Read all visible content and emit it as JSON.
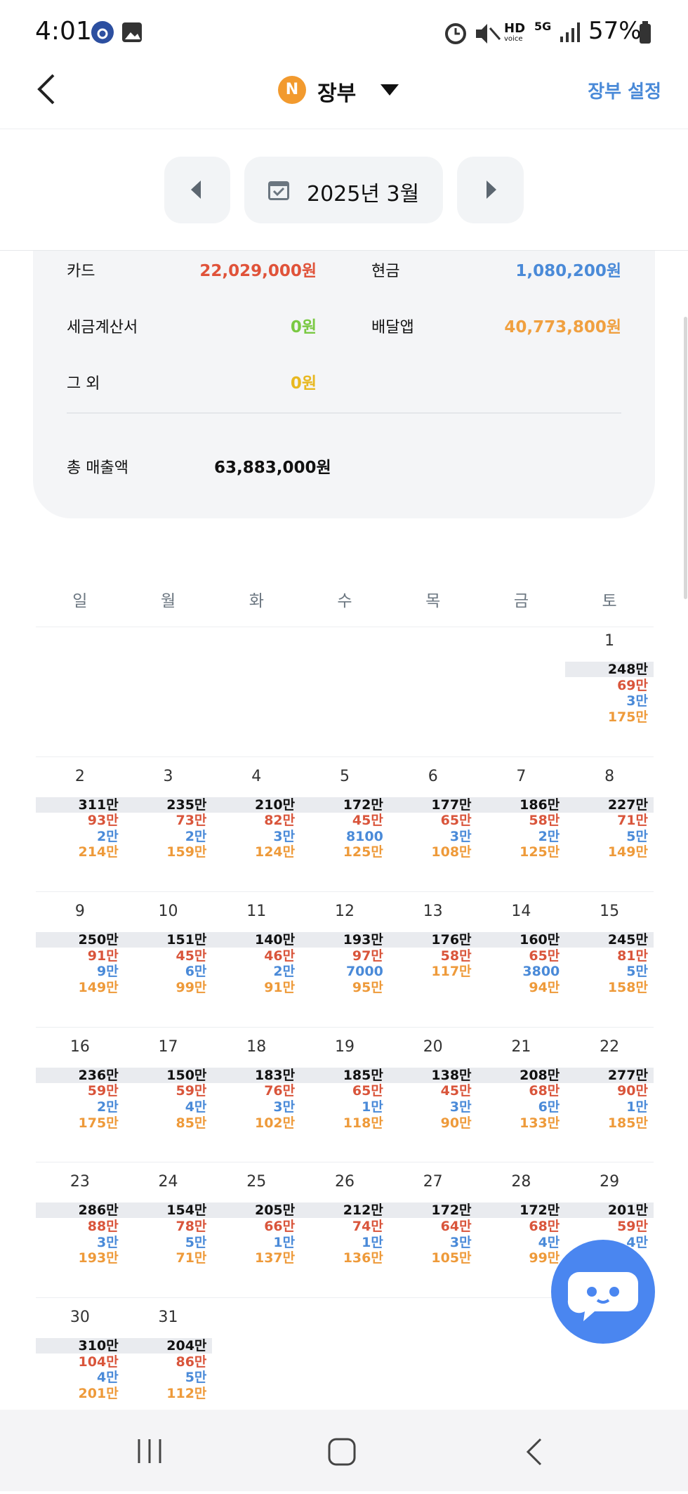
{
  "status_bar": {
    "time": "4:01",
    "voice": "HD",
    "voice_sub": "voice",
    "network": "5G",
    "battery": "57%"
  },
  "header": {
    "badge": "N",
    "title": "장부",
    "settings": "장부 설정"
  },
  "month_nav": {
    "label": "2025년 3월"
  },
  "summary": {
    "items": [
      {
        "label": "카드",
        "value": "22,029,000원"
      },
      {
        "label": "현금",
        "value": "1,080,200원"
      },
      {
        "label": "세금계산서",
        "value": "0원"
      },
      {
        "label": "배달앱",
        "value": "40,773,800원"
      },
      {
        "label": "그 외",
        "value": "0원"
      }
    ],
    "total": {
      "label": "총 매출액",
      "value": "63,883,000원"
    }
  },
  "calendar": {
    "weekdays": [
      "일",
      "월",
      "화",
      "수",
      "목",
      "금",
      "토"
    ],
    "weeks": [
      [
        null,
        null,
        null,
        null,
        null,
        null,
        {
          "day": 1,
          "total": "248만",
          "card": "69만",
          "cash": "3만",
          "delivery": "175만"
        }
      ],
      [
        {
          "day": 2,
          "total": "311만",
          "card": "93만",
          "cash": "2만",
          "delivery": "214만"
        },
        {
          "day": 3,
          "total": "235만",
          "card": "73만",
          "cash": "2만",
          "delivery": "159만"
        },
        {
          "day": 4,
          "total": "210만",
          "card": "82만",
          "cash": "3만",
          "delivery": "124만"
        },
        {
          "day": 5,
          "total": "172만",
          "card": "45만",
          "cash": "8100",
          "delivery": "125만"
        },
        {
          "day": 6,
          "total": "177만",
          "card": "65만",
          "cash": "3만",
          "delivery": "108만"
        },
        {
          "day": 7,
          "total": "186만",
          "card": "58만",
          "cash": "2만",
          "delivery": "125만"
        },
        {
          "day": 8,
          "total": "227만",
          "card": "71만",
          "cash": "5만",
          "delivery": "149만"
        }
      ],
      [
        {
          "day": 9,
          "total": "250만",
          "card": "91만",
          "cash": "9만",
          "delivery": "149만"
        },
        {
          "day": 10,
          "total": "151만",
          "card": "45만",
          "cash": "6만",
          "delivery": "99만"
        },
        {
          "day": 11,
          "total": "140만",
          "card": "46만",
          "cash": "2만",
          "delivery": "91만"
        },
        {
          "day": 12,
          "total": "193만",
          "card": "97만",
          "cash": "7000",
          "delivery": "95만"
        },
        {
          "day": 13,
          "total": "176만",
          "card": "58만",
          "delivery": "117만"
        },
        {
          "day": 14,
          "total": "160만",
          "card": "65만",
          "cash": "3800",
          "delivery": "94만"
        },
        {
          "day": 15,
          "total": "245만",
          "card": "81만",
          "cash": "5만",
          "delivery": "158만"
        }
      ],
      [
        {
          "day": 16,
          "total": "236만",
          "card": "59만",
          "cash": "2만",
          "delivery": "175만"
        },
        {
          "day": 17,
          "total": "150만",
          "card": "59만",
          "cash": "4만",
          "delivery": "85만"
        },
        {
          "day": 18,
          "total": "183만",
          "card": "76만",
          "cash": "3만",
          "delivery": "102만"
        },
        {
          "day": 19,
          "total": "185만",
          "card": "65만",
          "cash": "1만",
          "delivery": "118만"
        },
        {
          "day": 20,
          "total": "138만",
          "card": "45만",
          "cash": "3만",
          "delivery": "90만"
        },
        {
          "day": 21,
          "total": "208만",
          "card": "68만",
          "cash": "6만",
          "delivery": "133만"
        },
        {
          "day": 22,
          "total": "277만",
          "card": "90만",
          "cash": "1만",
          "delivery": "185만"
        }
      ],
      [
        {
          "day": 23,
          "total": "286만",
          "card": "88만",
          "cash": "3만",
          "delivery": "193만"
        },
        {
          "day": 24,
          "total": "154만",
          "card": "78만",
          "cash": "5만",
          "delivery": "71만"
        },
        {
          "day": 25,
          "total": "205만",
          "card": "66만",
          "cash": "1만",
          "delivery": "137만"
        },
        {
          "day": 26,
          "total": "212만",
          "card": "74만",
          "cash": "1만",
          "delivery": "136만"
        },
        {
          "day": 27,
          "total": "172만",
          "card": "64만",
          "cash": "3만",
          "delivery": "105만"
        },
        {
          "day": 28,
          "total": "172만",
          "card": "68만",
          "cash": "4만",
          "delivery": "99만"
        },
        {
          "day": 29,
          "total": "201만",
          "card": "59만",
          "cash": "4만"
        }
      ],
      [
        {
          "day": 30,
          "total": "310만",
          "card": "104만",
          "cash": "4만",
          "delivery": "201만"
        },
        {
          "day": 31,
          "total": "204만",
          "card": "86만",
          "cash": "5만",
          "delivery": "112만"
        },
        null,
        null,
        null,
        null,
        null
      ]
    ]
  }
}
